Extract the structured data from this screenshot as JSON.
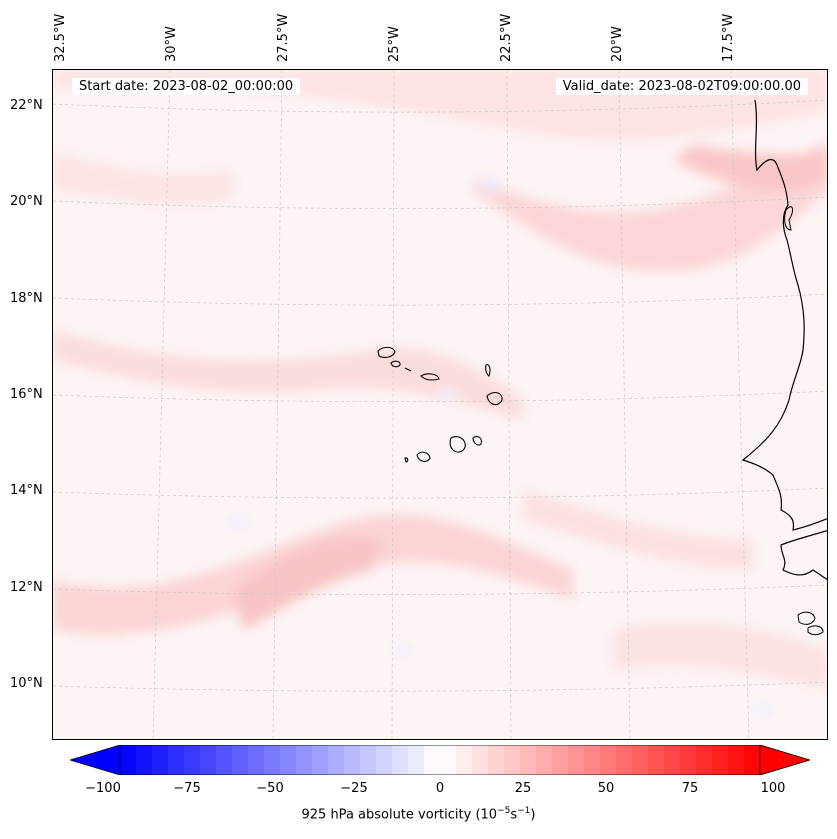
{
  "map": {
    "start_date": "Start date: 2023-08-02_00:00:00",
    "valid_date": "Valid_date: 2023-08-02T09:00:00.00",
    "lon_labels": [
      "32.5°W",
      "30°W",
      "27.5°W",
      "25°W",
      "22.5°W",
      "20°W",
      "17.5°W"
    ],
    "lat_labels": [
      "22°N",
      "20°N",
      "18°N",
      "16°N",
      "14°N",
      "12°N",
      "10°N"
    ],
    "colors": {
      "land_outline": "#000000",
      "gridline": "#c8c8c8",
      "base_field": "#fdf4f4"
    }
  },
  "colorbar": {
    "ticks": [
      "−100",
      "−75",
      "−50",
      "−25",
      "0",
      "25",
      "50",
      "75",
      "100"
    ],
    "title_prefix": "925 hPa absolute vorticity (10",
    "title_exp1": "−5",
    "title_mid": "s",
    "title_exp2": "−1",
    "title_suffix": ")",
    "range": [
      -100,
      100
    ],
    "colors": {
      "min": "#0000ff",
      "mid": "#ffffff",
      "max": "#ff0000"
    }
  }
}
